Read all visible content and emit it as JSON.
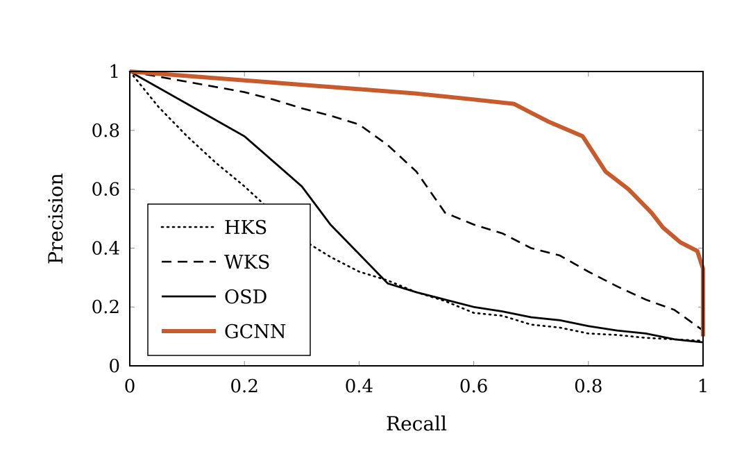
{
  "chart_data": {
    "type": "line",
    "title": "",
    "xlabel": "Recall",
    "ylabel": "Precision",
    "xlim": [
      0,
      1
    ],
    "ylim": [
      0,
      1
    ],
    "xticks": [
      0,
      0.2,
      0.4,
      0.6,
      0.8,
      1
    ],
    "yticks": [
      0,
      0.2,
      0.4,
      0.6,
      0.8,
      1
    ],
    "xtick_labels": [
      "0",
      "0.2",
      "0.4",
      "0.6",
      "0.8",
      "1"
    ],
    "ytick_labels": [
      "0",
      "0.2",
      "0.4",
      "0.6",
      "0.8",
      "1"
    ],
    "legend_position": "lower-left",
    "series": [
      {
        "name": "HKS",
        "style": "dotted",
        "color": "#000000",
        "x": [
          0,
          0.05,
          0.1,
          0.15,
          0.2,
          0.25,
          0.3,
          0.35,
          0.4,
          0.45,
          0.5,
          0.55,
          0.6,
          0.65,
          0.7,
          0.75,
          0.8,
          0.85,
          0.9,
          0.95,
          1.0
        ],
        "y": [
          1.0,
          0.88,
          0.78,
          0.69,
          0.61,
          0.52,
          0.43,
          0.37,
          0.32,
          0.29,
          0.25,
          0.22,
          0.18,
          0.17,
          0.14,
          0.13,
          0.11,
          0.105,
          0.095,
          0.09,
          0.085
        ]
      },
      {
        "name": "WKS",
        "style": "dashed",
        "color": "#000000",
        "x": [
          0,
          0.1,
          0.2,
          0.25,
          0.3,
          0.35,
          0.4,
          0.45,
          0.5,
          0.55,
          0.6,
          0.65,
          0.7,
          0.75,
          0.8,
          0.85,
          0.9,
          0.95,
          1.0
        ],
        "y": [
          1.0,
          0.965,
          0.93,
          0.905,
          0.875,
          0.85,
          0.82,
          0.75,
          0.66,
          0.52,
          0.48,
          0.45,
          0.4,
          0.375,
          0.32,
          0.27,
          0.225,
          0.19,
          0.12
        ]
      },
      {
        "name": "OSD",
        "style": "solid",
        "color": "#000000",
        "x": [
          0,
          0.1,
          0.2,
          0.25,
          0.3,
          0.35,
          0.4,
          0.45,
          0.5,
          0.55,
          0.6,
          0.65,
          0.7,
          0.75,
          0.8,
          0.85,
          0.9,
          0.95,
          1.0
        ],
        "y": [
          1.0,
          0.89,
          0.78,
          0.695,
          0.61,
          0.48,
          0.38,
          0.28,
          0.25,
          0.225,
          0.2,
          0.185,
          0.165,
          0.155,
          0.135,
          0.12,
          0.11,
          0.09,
          0.08
        ]
      },
      {
        "name": "GCNN",
        "style": "solid-thick",
        "color": "#c75b2c",
        "x": [
          0,
          0.1,
          0.2,
          0.3,
          0.4,
          0.5,
          0.6,
          0.67,
          0.73,
          0.79,
          0.83,
          0.87,
          0.91,
          0.93,
          0.96,
          0.99,
          1.0,
          1.0
        ],
        "y": [
          1.0,
          0.985,
          0.97,
          0.955,
          0.94,
          0.925,
          0.905,
          0.89,
          0.83,
          0.78,
          0.66,
          0.6,
          0.52,
          0.47,
          0.42,
          0.39,
          0.33,
          0.1
        ]
      }
    ]
  }
}
